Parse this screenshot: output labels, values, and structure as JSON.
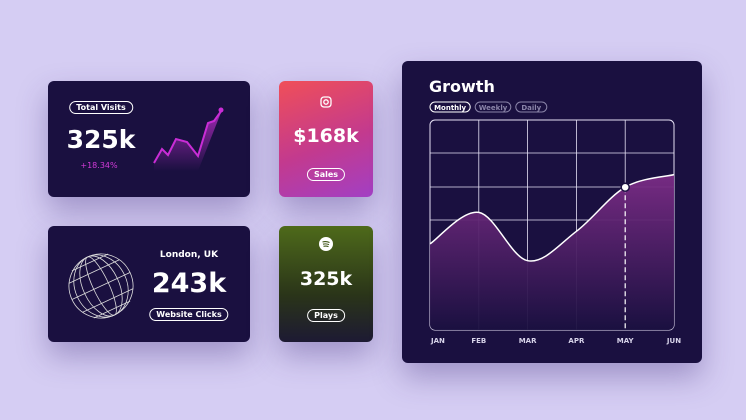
{
  "cards": [
    {
      "label": "Total Visits",
      "value": "325k",
      "change": "+18.34%"
    },
    {
      "value": "$168k",
      "label": "Sales"
    },
    {
      "location": "London, UK",
      "value": "243k",
      "label": "Website Clicks"
    },
    {
      "value": "325k",
      "label": "Plays"
    }
  ],
  "chart_data": {
    "type": "area",
    "title": "Growth",
    "tabs": [
      "Monthly",
      "Weekly",
      "Daily"
    ],
    "active_tab": "Monthly",
    "categories": [
      "JAN",
      "FEB",
      "MAR",
      "APR",
      "MAY",
      "JUN"
    ],
    "values": [
      41,
      56,
      33,
      47,
      68,
      74
    ],
    "ylim": [
      0,
      100
    ],
    "color": "#7b2c86",
    "highlight": "MAY"
  }
}
